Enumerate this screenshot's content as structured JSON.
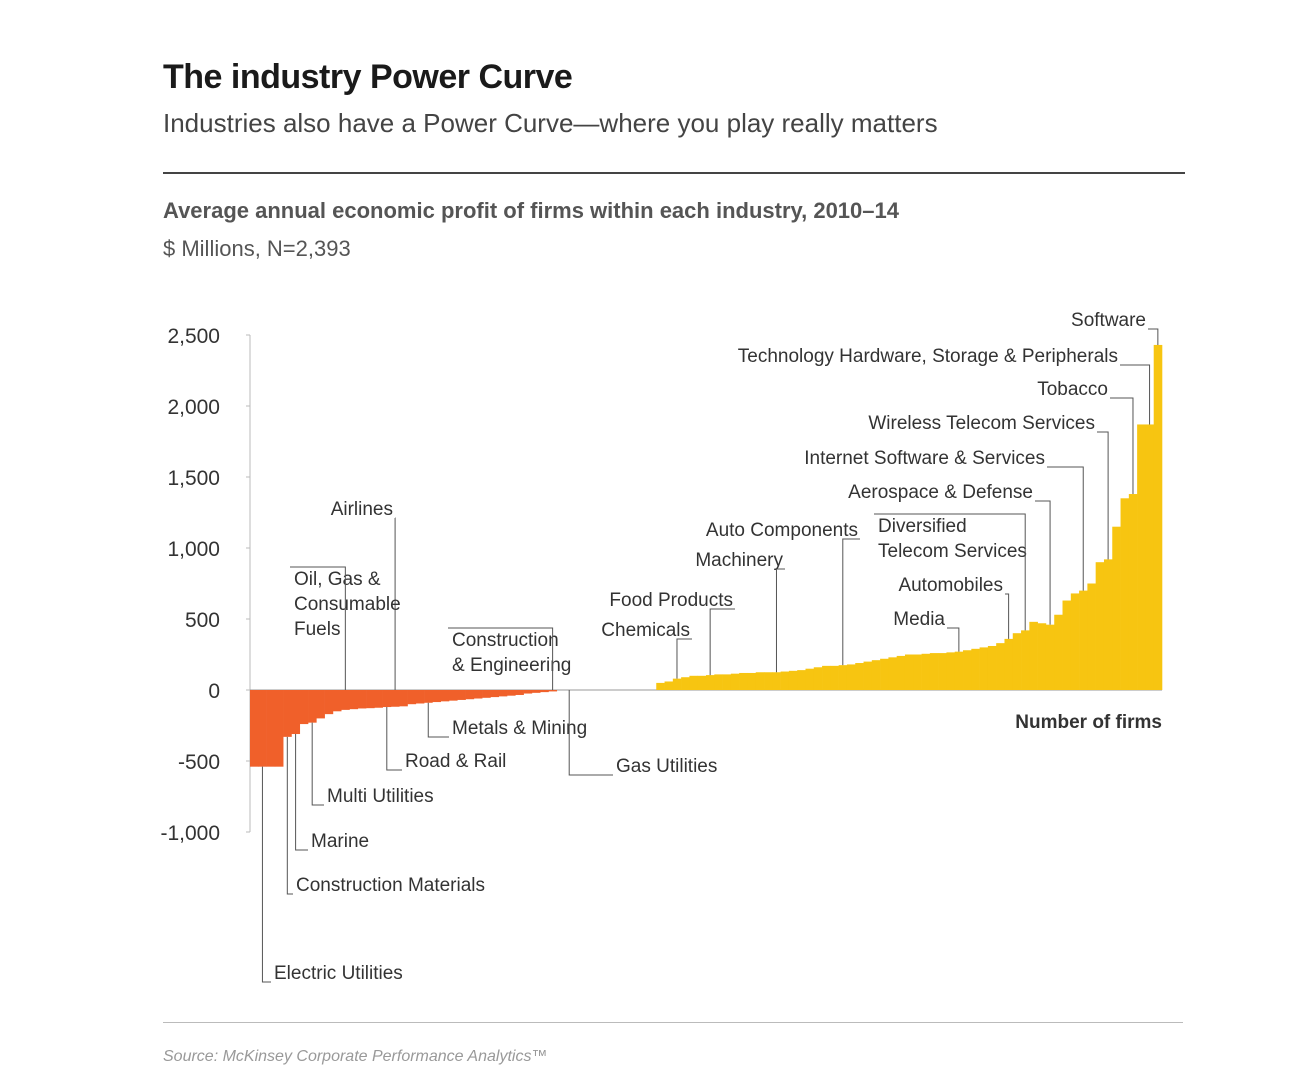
{
  "header": {
    "title": "The industry Power Curve",
    "subtitle": "Industries also have a Power Curve—where you play really matters"
  },
  "chart_header": {
    "title": "Average annual economic profit of firms within each industry, 2010–14",
    "units": "$ Millions, N=2,393"
  },
  "footer": {
    "source": "Source: McKinsey Corporate Performance Analytics™"
  },
  "colors": {
    "negative": "#f0602a",
    "positive": "#f7c511",
    "axis": "#bbbbbb",
    "leader": "#555555"
  },
  "chart_data": {
    "type": "bar",
    "xlabel": "Number of firms",
    "ylabel": "",
    "ylim": [
      -1000,
      2500
    ],
    "yticks": [
      2500,
      2000,
      1500,
      1000,
      500,
      0,
      -500,
      -1000
    ],
    "ytick_labels": [
      "2,500",
      "2,000",
      "1,500",
      "1,000",
      "500",
      "0",
      "-500",
      "-1,000"
    ],
    "grid": false,
    "values": [
      -540,
      -540,
      -540,
      -540,
      -330,
      -310,
      -240,
      -230,
      -200,
      -170,
      -150,
      -140,
      -135,
      -130,
      -128,
      -125,
      -120,
      -118,
      -115,
      -100,
      -95,
      -90,
      -85,
      -80,
      -75,
      -70,
      -65,
      -60,
      -55,
      -50,
      -45,
      -40,
      -35,
      -25,
      -20,
      -15,
      -10,
      0,
      0,
      0,
      0,
      0,
      0,
      0,
      0,
      0,
      0,
      0,
      0,
      50,
      60,
      80,
      90,
      100,
      100,
      105,
      110,
      110,
      115,
      120,
      120,
      125,
      125,
      125,
      130,
      135,
      140,
      150,
      160,
      170,
      170,
      175,
      180,
      190,
      200,
      210,
      220,
      230,
      240,
      250,
      250,
      255,
      260,
      260,
      265,
      270,
      280,
      290,
      300,
      310,
      330,
      360,
      400,
      420,
      480,
      470,
      460,
      530,
      630,
      680,
      700,
      750,
      900,
      920,
      1150,
      1350,
      1380,
      1870,
      1870,
      2430
    ],
    "annotations": [
      {
        "lines": [
          "Software"
        ]
      },
      {
        "lines": [
          "Technology Hardware, Storage & Peripherals"
        ]
      },
      {
        "lines": [
          "Tobacco"
        ]
      },
      {
        "lines": [
          "Wireless Telecom Services"
        ]
      },
      {
        "lines": [
          "Internet Software & Services"
        ]
      },
      {
        "lines": [
          "Aerospace & Defense"
        ]
      },
      {
        "lines": [
          "Auto Components"
        ]
      },
      {
        "lines": [
          "Diversified",
          "Telecom Services"
        ]
      },
      {
        "lines": [
          "Machinery"
        ]
      },
      {
        "lines": [
          "Automobiles"
        ]
      },
      {
        "lines": [
          "Food Products"
        ]
      },
      {
        "lines": [
          "Chemicals"
        ]
      },
      {
        "lines": [
          "Media"
        ]
      },
      {
        "lines": [
          "Airlines"
        ]
      },
      {
        "lines": [
          "Oil, Gas &",
          "Consumable",
          "Fuels"
        ]
      },
      {
        "lines": [
          "Construction",
          "& Engineering"
        ]
      },
      {
        "lines": [
          "Metals & Mining"
        ]
      },
      {
        "lines": [
          "Road & Rail"
        ]
      },
      {
        "lines": [
          "Gas Utilities"
        ]
      },
      {
        "lines": [
          "Multi Utilities"
        ]
      },
      {
        "lines": [
          "Marine"
        ]
      },
      {
        "lines": [
          "Construction Materials"
        ]
      },
      {
        "lines": [
          "Electric Utilities"
        ]
      }
    ]
  }
}
